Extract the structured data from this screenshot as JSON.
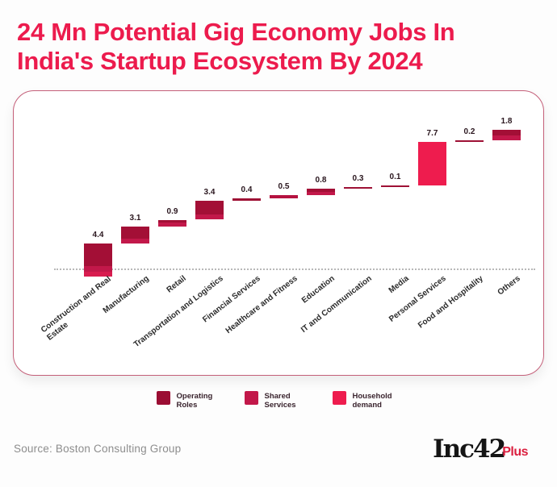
{
  "header": {
    "title": "24 Mn Potential Gig Economy Jobs In\nIndia's Startup Ecosystem By 2024"
  },
  "footer": {
    "source": "Source: Boston Consulting Group",
    "logo_text": "Inc42",
    "logo_plus": "Plus"
  },
  "colors": {
    "title": "#EC1B4D",
    "card_border": "#C45F79",
    "bar_dark": "#A30F36",
    "bar_medium": "#C2184A",
    "bar_bright": "#EE1C4E",
    "value_label": "#2A161E",
    "category_label": "#2B2B2B",
    "source_text": "#8D8D8D",
    "logo_black": "#151515",
    "logo_red": "#DB1F3F"
  },
  "chart_data": {
    "type": "bar",
    "subtype": "waterfall",
    "title": "24 Mn Potential Gig Economy Jobs In India's Startup Ecosystem By 2024",
    "unit": "Mn jobs",
    "categories": [
      "Construction and Real Estate",
      "Manufacturing",
      "Retail",
      "Transportation and Logistics",
      "Financial Services",
      "Healthcare and Fitness",
      "Education",
      "IT and Communication",
      "Media",
      "Personal Services",
      "Food and Hospitality",
      "Others"
    ],
    "values": [
      4.4,
      3.1,
      0.9,
      3.4,
      0.4,
      0.5,
      0.8,
      0.3,
      0.1,
      7.7,
      0.2,
      1.8
    ],
    "value_labels": [
      "4.4",
      "3.1",
      "0.9",
      "3.4",
      "0.4",
      "0.5",
      "0.8",
      "0.3",
      "0.1",
      "7.7",
      "0.2",
      "1.8"
    ],
    "bar_segments": [
      [
        [
          "#A30F36",
          0.68
        ],
        [
          "#C2184A",
          0.17
        ],
        [
          "#D81C4F",
          0.15
        ]
      ],
      [
        [
          "#A30F36",
          0.7
        ],
        [
          "#C2184A",
          0.3
        ]
      ],
      [
        [
          "#A30F36",
          0.45
        ],
        [
          "#C2184A",
          0.55
        ]
      ],
      [
        [
          "#A30F36",
          0.72
        ],
        [
          "#C2184A",
          0.28
        ]
      ],
      [
        [
          "#9E1135",
          1
        ]
      ],
      [
        [
          "#B51240",
          1
        ]
      ],
      [
        [
          "#A30F36",
          0.45
        ],
        [
          "#C2184A",
          0.55
        ]
      ],
      [
        [
          "#9E1135",
          1
        ]
      ],
      [
        [
          "#9E1135",
          1
        ]
      ],
      [
        [
          "#EE1C4E",
          1
        ]
      ],
      [
        [
          "#9E1135",
          1
        ]
      ],
      [
        [
          "#A30F36",
          0.55
        ],
        [
          "#C2184A",
          0.45
        ]
      ]
    ],
    "legend": [
      {
        "label": "Operating Roles",
        "color": "#9B0D33"
      },
      {
        "label": "Shared Services",
        "color": "#C2184A"
      },
      {
        "label": "Household demand",
        "color": "#EE1C4E"
      }
    ],
    "legend_position": "bottom",
    "x_axis": {
      "labels_rotated": true,
      "baseline_style": "dotted"
    },
    "y_axis": {
      "visible": false
    }
  }
}
